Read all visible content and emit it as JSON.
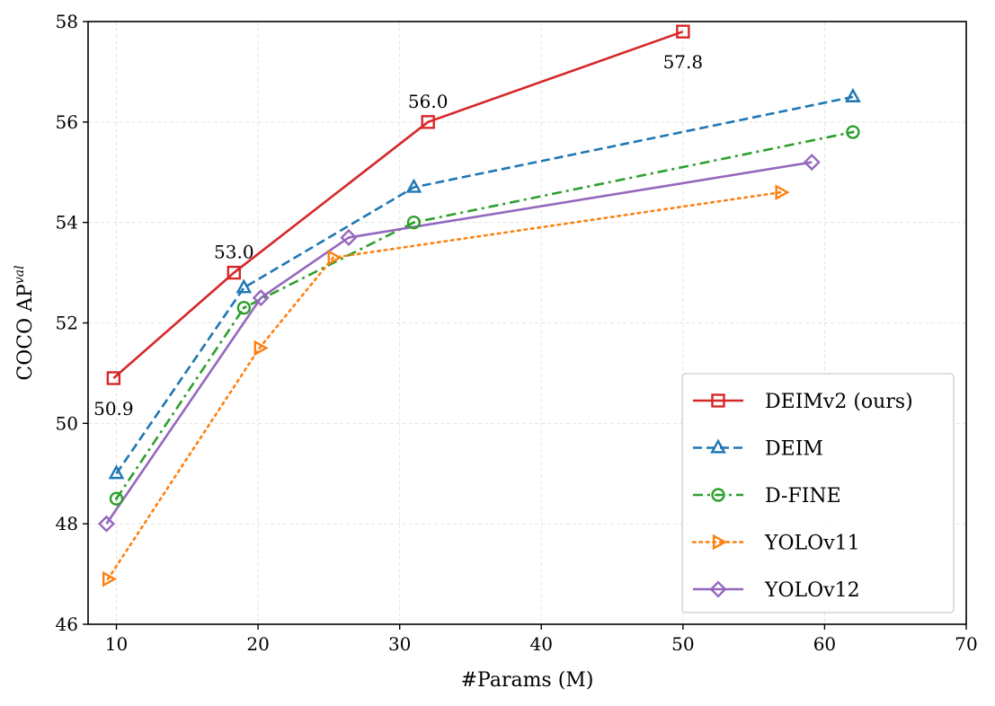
{
  "chart_data": {
    "type": "line",
    "title": "",
    "xlabel": "#Params (M)",
    "ylabel": {
      "base": "COCO AP",
      "superscript": "val"
    },
    "xlim": [
      8,
      70
    ],
    "ylim": [
      46,
      58
    ],
    "xticks": [
      10,
      20,
      30,
      40,
      50,
      60,
      70
    ],
    "yticks": [
      46,
      48,
      50,
      52,
      54,
      56,
      58
    ],
    "grid": true,
    "legend_position": "lower right",
    "series": [
      {
        "name": "DEIMv2 (ours)",
        "color": "#d62728",
        "linestyle": "solid",
        "marker": "square",
        "x": [
          9.8,
          18.3,
          32,
          50
        ],
        "y": [
          50.9,
          53.0,
          56.0,
          57.8
        ]
      },
      {
        "name": "DEIM",
        "color": "#1f77b4",
        "linestyle": "dashed",
        "marker": "triangle-up",
        "x": [
          10,
          19,
          31,
          62
        ],
        "y": [
          49.0,
          52.7,
          54.7,
          56.5
        ]
      },
      {
        "name": "D-FINE",
        "color": "#2ca02c",
        "linestyle": "dashdot",
        "marker": "circle",
        "x": [
          10,
          19,
          31,
          62
        ],
        "y": [
          48.5,
          52.3,
          54.0,
          55.8
        ]
      },
      {
        "name": "YOLOv11",
        "color": "#ff7f0e",
        "linestyle": "dotted",
        "marker": "triangle-right",
        "x": [
          9.4,
          20.1,
          25.3,
          56.9
        ],
        "y": [
          46.9,
          51.5,
          53.3,
          54.6
        ]
      },
      {
        "name": "YOLOv12",
        "color": "#9467bd",
        "linestyle": "solid",
        "marker": "diamond",
        "x": [
          9.3,
          20.2,
          26.4,
          59.1
        ],
        "y": [
          48.0,
          52.5,
          53.7,
          55.2
        ]
      }
    ],
    "annotations": [
      {
        "text": "50.9",
        "x": 9.8,
        "y": 50.9,
        "position": "below"
      },
      {
        "text": "53.0",
        "x": 18.3,
        "y": 53.0,
        "position": "above"
      },
      {
        "text": "56.0",
        "x": 32,
        "y": 56.0,
        "position": "above"
      },
      {
        "text": "57.8",
        "x": 50,
        "y": 57.8,
        "position": "below"
      }
    ]
  }
}
